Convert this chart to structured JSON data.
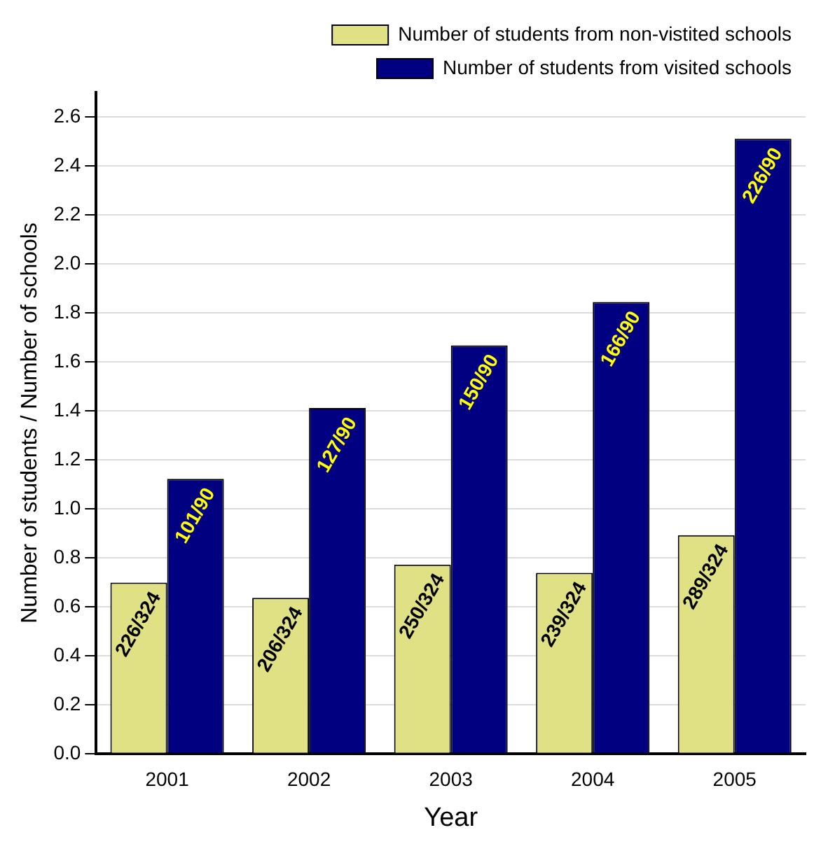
{
  "chart_data": {
    "type": "bar",
    "xlabel": "Year",
    "ylabel": "Number of students / Number of schools",
    "categories": [
      "2001",
      "2002",
      "2003",
      "2004",
      "2005"
    ],
    "series": [
      {
        "name": "Number of students from non-vistited schools",
        "color": "#e0e085",
        "values": [
          0.698,
          0.636,
          0.772,
          0.738,
          0.892
        ],
        "value_labels": [
          "226/324",
          "206/324",
          "250/324",
          "239/324",
          "289/324"
        ]
      },
      {
        "name": "Number of students from visited schools",
        "color": "#000080",
        "values": [
          1.122,
          1.411,
          1.667,
          1.844,
          2.511
        ],
        "value_labels": [
          "101/90",
          "127/90",
          "150/90",
          "166/90",
          "226/90"
        ]
      }
    ],
    "ylim": [
      0,
      2.7
    ],
    "yticks": [
      {
        "value": 0,
        "label": "0.0"
      },
      {
        "value": 0.2,
        "label": "0.2"
      },
      {
        "value": 0.4,
        "label": "0.4"
      },
      {
        "value": 0.6,
        "label": "0.6"
      },
      {
        "value": 0.8,
        "label": "0.8"
      },
      {
        "value": 1,
        "label": "1.0"
      },
      {
        "value": 1.2,
        "label": "1.2"
      },
      {
        "value": 1.4,
        "label": "1.4"
      },
      {
        "value": 1.6,
        "label": "1.6"
      },
      {
        "value": 1.8,
        "label": "1.8"
      },
      {
        "value": 2,
        "label": "2.0"
      },
      {
        "value": 2.2,
        "label": "2.2"
      },
      {
        "value": 2.4,
        "label": "2.4"
      },
      {
        "value": 2.6,
        "label": "2.6"
      }
    ],
    "grid": "y",
    "legend": "top right"
  }
}
